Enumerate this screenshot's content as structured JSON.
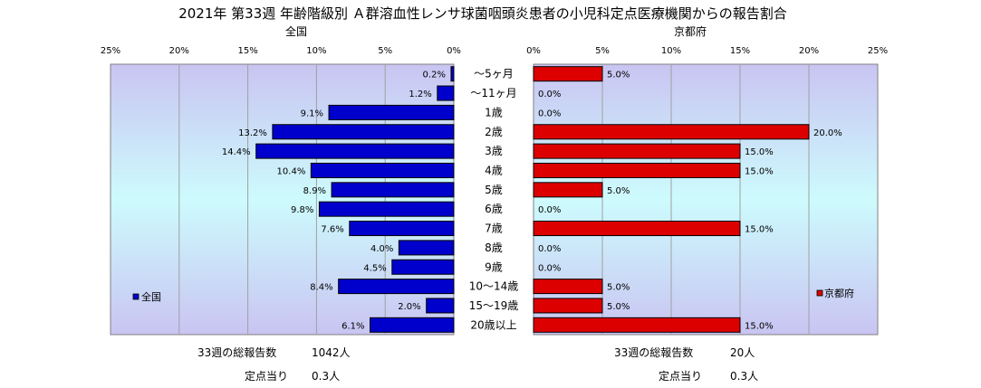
{
  "chart_data": {
    "type": "bar",
    "orientation": "horizontal",
    "title": "2021年 第33週 年齢階級別 Ａ群溶血性レンサ球菌咽頭炎患者の小児科定点医療機関からの報告割合",
    "categories": [
      "～5ヶ月",
      "～11ヶ月",
      "1歳",
      "2歳",
      "3歳",
      "4歳",
      "5歳",
      "6歳",
      "7歳",
      "8歳",
      "9歳",
      "10～14歳",
      "15～19歳",
      "20歳以上"
    ],
    "panels": [
      {
        "subtitle": "全国",
        "direction": "left",
        "xlim": [
          0,
          25
        ],
        "ticks": [
          "25%",
          "20%",
          "15%",
          "10%",
          "5%",
          "0%"
        ],
        "series": [
          {
            "name": "全国",
            "color": "#0000cc",
            "values": [
              0.2,
              1.2,
              9.1,
              13.2,
              14.4,
              10.4,
              8.9,
              9.8,
              7.6,
              4.0,
              4.5,
              8.4,
              2.0,
              6.1
            ]
          }
        ],
        "data_labels": [
          "0.2%",
          "1.2%",
          "9.1%",
          "13.2%",
          "14.4%",
          "10.4%",
          "8.9%",
          "9.8%",
          "7.6%",
          "4.0%",
          "4.5%",
          "8.4%",
          "2.0%",
          "6.1%"
        ],
        "legend": "全国",
        "footer": {
          "total_label": "33週の総報告数",
          "total_value": "1042人",
          "per_label": "定点当り",
          "per_value": "0.3人"
        }
      },
      {
        "subtitle": "京都府",
        "direction": "right",
        "xlim": [
          0,
          25
        ],
        "ticks": [
          "0%",
          "5%",
          "10%",
          "15%",
          "20%",
          "25%"
        ],
        "series": [
          {
            "name": "京都府",
            "color": "#dd0000",
            "values": [
              5.0,
              0.0,
              0.0,
              20.0,
              15.0,
              15.0,
              5.0,
              0.0,
              15.0,
              0.0,
              0.0,
              5.0,
              5.0,
              15.0
            ]
          }
        ],
        "data_labels": [
          "5.0%",
          "0.0%",
          "0.0%",
          "20.0%",
          "15.0%",
          "15.0%",
          "5.0%",
          "0.0%",
          "15.0%",
          "0.0%",
          "0.0%",
          "5.0%",
          "5.0%",
          "15.0%"
        ],
        "legend": "京都府",
        "footer": {
          "total_label": "33週の総報告数",
          "total_value": "20人",
          "per_label": "定点当り",
          "per_value": "0.3人"
        }
      }
    ],
    "grid": true
  }
}
